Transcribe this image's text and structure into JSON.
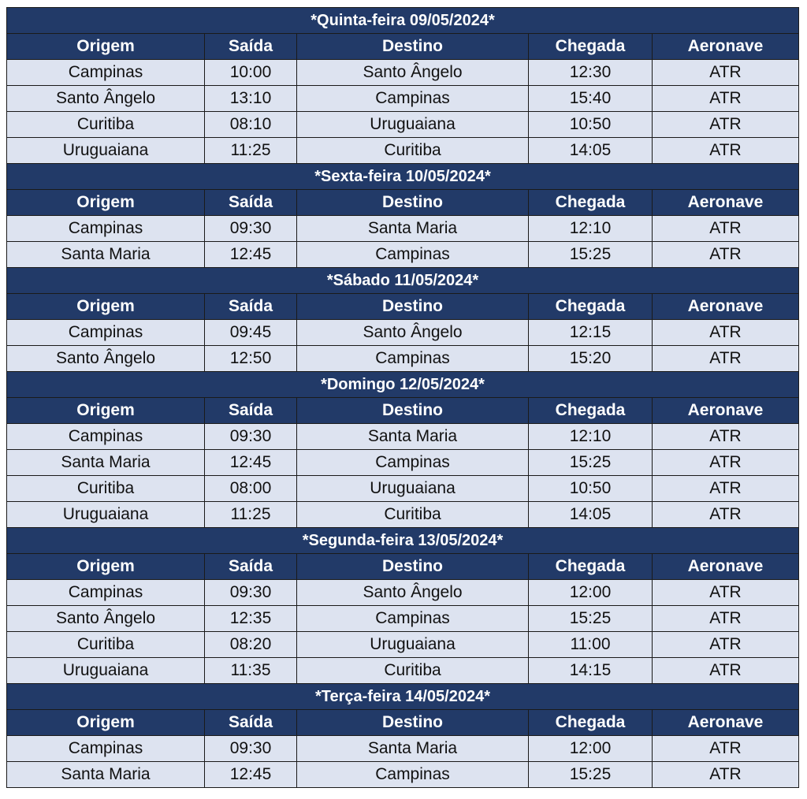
{
  "headers": {
    "origem": "Origem",
    "saida": "Saída",
    "destino": "Destino",
    "chegada": "Chegada",
    "aeronave": "Aeronave"
  },
  "days": [
    {
      "title": "*Quinta-feira 09/05/2024*",
      "flights": [
        {
          "origem": "Campinas",
          "saida": "10:00",
          "destino": "Santo Ângelo",
          "chegada": "12:30",
          "aeronave": "ATR"
        },
        {
          "origem": "Santo Ângelo",
          "saida": "13:10",
          "destino": "Campinas",
          "chegada": "15:40",
          "aeronave": "ATR"
        },
        {
          "origem": "Curitiba",
          "saida": "08:10",
          "destino": "Uruguaiana",
          "chegada": "10:50",
          "aeronave": "ATR"
        },
        {
          "origem": "Uruguaiana",
          "saida": "11:25",
          "destino": "Curitiba",
          "chegada": "14:05",
          "aeronave": "ATR"
        }
      ]
    },
    {
      "title": "*Sexta-feira 10/05/2024*",
      "flights": [
        {
          "origem": "Campinas",
          "saida": "09:30",
          "destino": "Santa Maria",
          "chegada": "12:10",
          "aeronave": "ATR"
        },
        {
          "origem": "Santa Maria",
          "saida": "12:45",
          "destino": "Campinas",
          "chegada": "15:25",
          "aeronave": "ATR"
        }
      ]
    },
    {
      "title": "*Sábado 11/05/2024*",
      "flights": [
        {
          "origem": "Campinas",
          "saida": "09:45",
          "destino": "Santo Ângelo",
          "chegada": "12:15",
          "aeronave": "ATR"
        },
        {
          "origem": "Santo Ângelo",
          "saida": "12:50",
          "destino": "Campinas",
          "chegada": "15:20",
          "aeronave": "ATR"
        }
      ]
    },
    {
      "title": "*Domingo 12/05/2024*",
      "flights": [
        {
          "origem": "Campinas",
          "saida": "09:30",
          "destino": "Santa Maria",
          "chegada": "12:10",
          "aeronave": "ATR"
        },
        {
          "origem": "Santa Maria",
          "saida": "12:45",
          "destino": "Campinas",
          "chegada": "15:25",
          "aeronave": "ATR"
        },
        {
          "origem": "Curitiba",
          "saida": "08:00",
          "destino": "Uruguaiana",
          "chegada": "10:50",
          "aeronave": "ATR"
        },
        {
          "origem": "Uruguaiana",
          "saida": "11:25",
          "destino": "Curitiba",
          "chegada": "14:05",
          "aeronave": "ATR"
        }
      ]
    },
    {
      "title": "*Segunda-feira 13/05/2024*",
      "flights": [
        {
          "origem": "Campinas",
          "saida": "09:30",
          "destino": "Santo Ângelo",
          "chegada": "12:00",
          "aeronave": "ATR"
        },
        {
          "origem": "Santo Ângelo",
          "saida": "12:35",
          "destino": "Campinas",
          "chegada": "15:25",
          "aeronave": "ATR"
        },
        {
          "origem": "Curitiba",
          "saida": "08:20",
          "destino": "Uruguaiana",
          "chegada": "11:00",
          "aeronave": "ATR"
        },
        {
          "origem": "Uruguaiana",
          "saida": "11:35",
          "destino": "Curitiba",
          "chegada": "14:15",
          "aeronave": "ATR"
        }
      ]
    },
    {
      "title": "*Terça-feira 14/05/2024*",
      "flights": [
        {
          "origem": "Campinas",
          "saida": "09:30",
          "destino": "Santa Maria",
          "chegada": "12:00",
          "aeronave": "ATR"
        },
        {
          "origem": "Santa Maria",
          "saida": "12:45",
          "destino": "Campinas",
          "chegada": "15:25",
          "aeronave": "ATR"
        }
      ]
    }
  ]
}
